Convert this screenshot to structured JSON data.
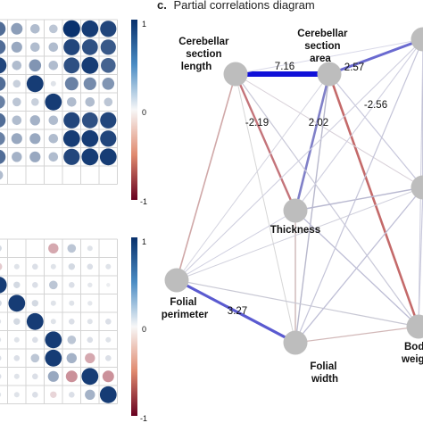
{
  "panel_c": {
    "letter": "c.",
    "title": "Partial correlations diagram",
    "nodes": [
      {
        "id": "csl",
        "label": [
          "Cerebellar",
          "section",
          "length"
        ]
      },
      {
        "id": "csa",
        "label": [
          "Cerebellar",
          "section",
          "area"
        ]
      },
      {
        "id": "thick",
        "label": [
          "Thickness"
        ]
      },
      {
        "id": "fp",
        "label": [
          "Folial",
          "perimeter"
        ]
      },
      {
        "id": "fw",
        "label": [
          "Folial",
          "width"
        ]
      },
      {
        "id": "bw",
        "label": [
          "Bod",
          "weig"
        ]
      },
      {
        "id": "tr",
        "label": []
      },
      {
        "id": "rm",
        "label": []
      }
    ],
    "edge_labels": [
      {
        "text": "7.16"
      },
      {
        "text": "2.57"
      },
      {
        "text": "-2.19"
      },
      {
        "text": "2.02"
      },
      {
        "text": "-2.56"
      },
      {
        "text": "3.27"
      }
    ]
  },
  "colorbar_ticks": [
    "1",
    "0",
    "-1"
  ],
  "colors": {
    "positive": "#1f3f8f",
    "negative": "#b5323a",
    "node": "#bdbdbd",
    "grid": "#cfcfcf"
  }
}
